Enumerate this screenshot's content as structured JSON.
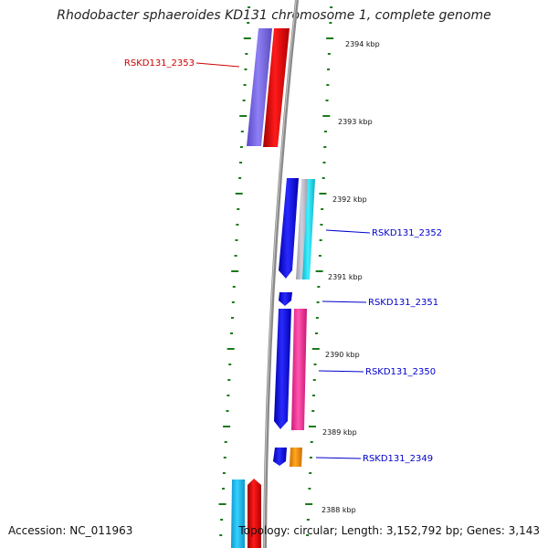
{
  "title": "Rhodobacter sphaeroides KD131 chromosome 1, complete genome",
  "accession": "Accession: NC_011963",
  "topology": "Topology: circular; Length: 3,152,792 bp; Genes: 3,143",
  "ticks": [
    {
      "label": "2394 kbp"
    },
    {
      "label": "2393 kbp"
    },
    {
      "label": "2392 kbp"
    },
    {
      "label": "2391 kbp"
    },
    {
      "label": "2390 kbp"
    },
    {
      "label": "2389 kbp"
    },
    {
      "label": "2388 kbp"
    }
  ],
  "genes": [
    {
      "label": "RSKD131_2353",
      "color": "#cc0000"
    },
    {
      "label": "RSKD131_2352",
      "color": "#0000cc"
    },
    {
      "label": "RSKD131_2351",
      "color": "#0000cc"
    },
    {
      "label": "RSKD131_2350",
      "color": "#0000cc"
    },
    {
      "label": "RSKD131_2349",
      "color": "#0000cc"
    }
  ],
  "colors": {
    "red": "#ff0000",
    "purple": "#7b68ee",
    "blue": "#1010ee",
    "cyan": "#22e0ff",
    "light_blue": "#22c4f0",
    "gray": "#b8b8c4",
    "pink": "#ff3aa0",
    "orange": "#ff9900",
    "backbone": "#808080",
    "tick_marks": "#1a7a1a"
  }
}
